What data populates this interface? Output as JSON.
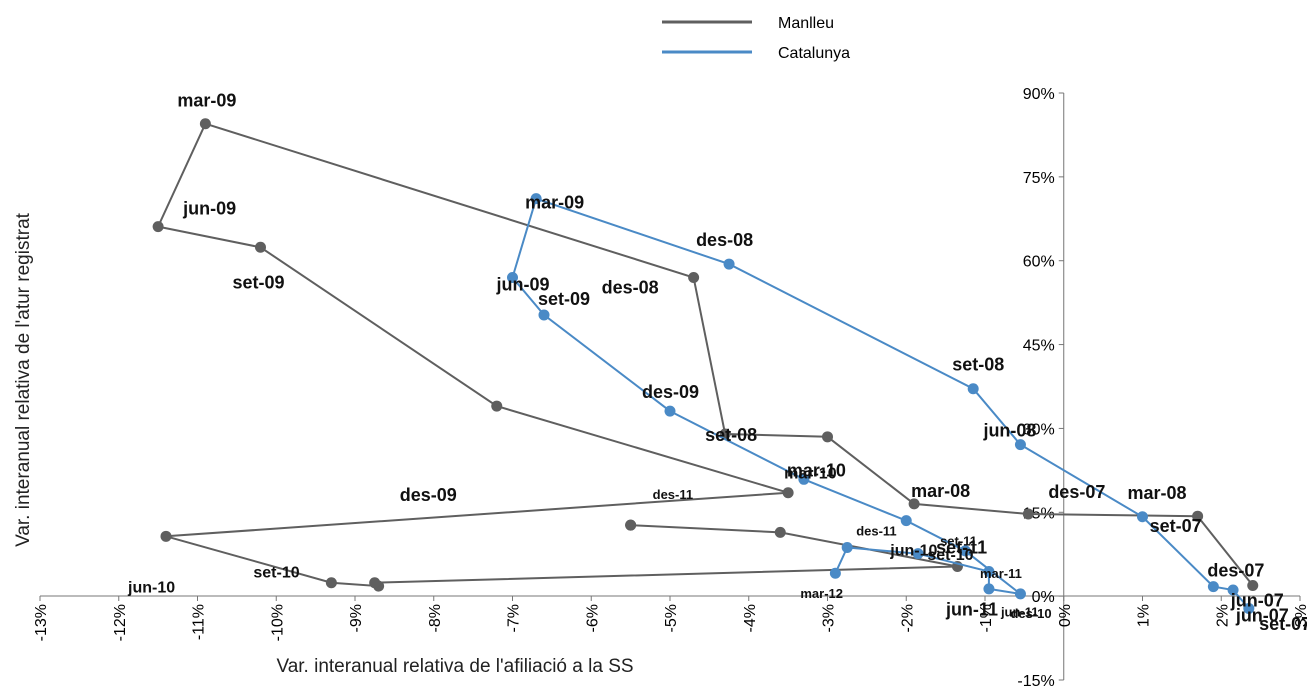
{
  "chart_data": {
    "type": "scatter",
    "xlabel": "Var. interanual relativa de l'afiliació a la SS",
    "ylabel": "Var. interanual relativa de l'atur registrat",
    "xlim": [
      -0.13,
      0.03
    ],
    "ylim": [
      -0.15,
      0.9
    ],
    "x_ticks": [
      "-13%",
      "-12%",
      "-11%",
      "-10%",
      "-9%",
      "-8%",
      "-7%",
      "-6%",
      "-5%",
      "-4%",
      "-3%",
      "-2%",
      "-1%",
      "0%",
      "1%",
      "2%",
      "3%"
    ],
    "y_ticks": [
      "-15%",
      "0%",
      "15%",
      "30%",
      "45%",
      "60%",
      "75%",
      "90%"
    ],
    "legend_position": "top-center",
    "colors": {
      "Manlleu": "#5f5f5f",
      "Catalunya": "#4a8ac6"
    },
    "series": [
      {
        "name": "Manlleu",
        "labels": [
          "jun-07",
          "set-07",
          "des-07",
          "mar-08",
          "jun-08",
          "set-08",
          "des-08",
          "mar-09",
          "jun-09",
          "set-09",
          "des-09",
          "mar-10",
          "jun-10",
          "set-10",
          "des-10",
          "mar-11",
          "jun-11",
          "set-11",
          "des-11",
          "mar-12"
        ],
        "x": [
          0.024,
          0.017,
          -0.0045,
          -0.019,
          -0.03,
          -0.043,
          -0.047,
          -0.109,
          -0.115,
          -0.102,
          -0.072,
          -0.035,
          -0.114,
          -0.093,
          -0.087,
          -0.0875,
          -0.0135,
          -0.036,
          -0.055,
          -0.055
        ],
        "y": [
          0.019,
          0.143,
          0.147,
          0.165,
          0.285,
          0.29,
          0.57,
          0.845,
          0.661,
          0.624,
          0.34,
          0.185,
          0.107,
          0.024,
          0.018,
          0.024,
          0.053,
          0.114,
          0.127,
          0.127
        ]
      },
      {
        "name": "Catalunya",
        "labels": [
          "jun-07",
          "set-07",
          "des-07",
          "mar-08",
          "jun-08",
          "set-08",
          "des-08",
          "mar-09",
          "jun-09",
          "set-09",
          "des-09",
          "mar-10",
          "jun-10",
          "set-10",
          "des-10",
          "mar-11",
          "jun-11",
          "set-11",
          "des-11",
          "mar-12"
        ],
        "x": [
          0.0235,
          0.0215,
          0.019,
          0.01,
          -0.0055,
          -0.0115,
          -0.0425,
          -0.067,
          -0.07,
          -0.066,
          -0.05,
          -0.033,
          -0.02,
          -0.0125,
          -0.0055,
          -0.0095,
          -0.0095,
          -0.0185,
          -0.0275,
          -0.029
        ],
        "y": [
          -0.022,
          0.011,
          0.017,
          0.142,
          0.271,
          0.371,
          0.594,
          0.711,
          0.57,
          0.503,
          0.331,
          0.209,
          0.135,
          0.081,
          0.004,
          0.013,
          0.044,
          0.076,
          0.087,
          0.041
        ]
      }
    ],
    "annotations": [
      {
        "text": "mar-09",
        "series": "Manlleu",
        "index": 7,
        "size": "lg"
      },
      {
        "text": "jun-09",
        "series": "Manlleu",
        "index": 8,
        "size": "lg"
      },
      {
        "text": "set-09",
        "series": "Manlleu",
        "index": 9,
        "size": "lg"
      },
      {
        "text": "des-09",
        "series": "Manlleu",
        "index": 10,
        "size": "lg"
      },
      {
        "text": "des-08",
        "series": "Manlleu",
        "index": 6,
        "size": "lg"
      },
      {
        "text": "set-08",
        "series": "Manlleu",
        "index": 5,
        "size": "lg"
      },
      {
        "text": "mar-08",
        "series": "Manlleu",
        "index": 3,
        "size": "lg"
      },
      {
        "text": "des-07",
        "series": "Manlleu",
        "index": 2,
        "size": "lg"
      },
      {
        "text": "set-07",
        "series": "Manlleu",
        "index": 1,
        "size": "lg"
      },
      {
        "text": "jun-07",
        "series": "Manlleu",
        "index": 0,
        "size": "lg"
      },
      {
        "text": "mar-10",
        "series": "Manlleu",
        "index": 11,
        "size": "md"
      },
      {
        "text": "jun-10",
        "series": "Manlleu",
        "index": 12,
        "size": "md"
      },
      {
        "text": "set-10",
        "series": "Manlleu",
        "index": 13,
        "size": "md"
      },
      {
        "text": "des-11",
        "series": "Manlleu",
        "index": 18,
        "size": "sm"
      },
      {
        "text": "mar-09",
        "series": "Catalunya",
        "index": 7,
        "size": "lg"
      },
      {
        "text": "jun-09",
        "series": "Catalunya",
        "index": 8,
        "size": "lg"
      },
      {
        "text": "set-09",
        "series": "Catalunya",
        "index": 9,
        "size": "lg"
      },
      {
        "text": "des-09",
        "series": "Catalunya",
        "index": 10,
        "size": "lg"
      },
      {
        "text": "des-08",
        "series": "Catalunya",
        "index": 6,
        "size": "lg"
      },
      {
        "text": "set-08",
        "series": "Catalunya",
        "index": 5,
        "size": "lg"
      },
      {
        "text": "jun-08",
        "series": "Catalunya",
        "index": 4,
        "size": "lg"
      },
      {
        "text": "mar-08",
        "series": "Catalunya",
        "index": 3,
        "size": "lg"
      },
      {
        "text": "des-07",
        "series": "Catalunya",
        "index": 2,
        "size": "lg"
      },
      {
        "text": "set-07",
        "series": "Catalunya",
        "index": 1,
        "size": "lg"
      },
      {
        "text": "jun-07",
        "series": "Catalunya",
        "index": 0,
        "size": "lg"
      },
      {
        "text": "mar-10",
        "series": "Catalunya",
        "index": 11,
        "size": "lg"
      },
      {
        "text": "jun-10",
        "series": "Catalunya",
        "index": 12,
        "size": "md"
      },
      {
        "text": "set-10",
        "series": "Catalunya",
        "index": 13,
        "size": "md"
      },
      {
        "text": "des-10",
        "series": "Catalunya",
        "index": 14,
        "size": "sm"
      },
      {
        "text": "mar-11",
        "series": "Catalunya",
        "index": 15,
        "size": "sm"
      },
      {
        "text": "jun-11",
        "series": "Catalunya",
        "index": 16,
        "size": "lg"
      },
      {
        "text": "set-11",
        "series": "Catalunya",
        "index": 17,
        "size": "lg"
      },
      {
        "text": "des-11",
        "series": "Catalunya",
        "index": 18,
        "size": "sm"
      },
      {
        "text": "mar-12",
        "series": "Catalunya",
        "index": 19,
        "size": "sm"
      },
      {
        "text": "jun-11",
        "series": "Catalunya",
        "index": 16,
        "size": "sm",
        "alt": true
      },
      {
        "text": "set-11",
        "series": "Catalunya",
        "index": 17,
        "size": "sm",
        "alt": true
      }
    ]
  }
}
